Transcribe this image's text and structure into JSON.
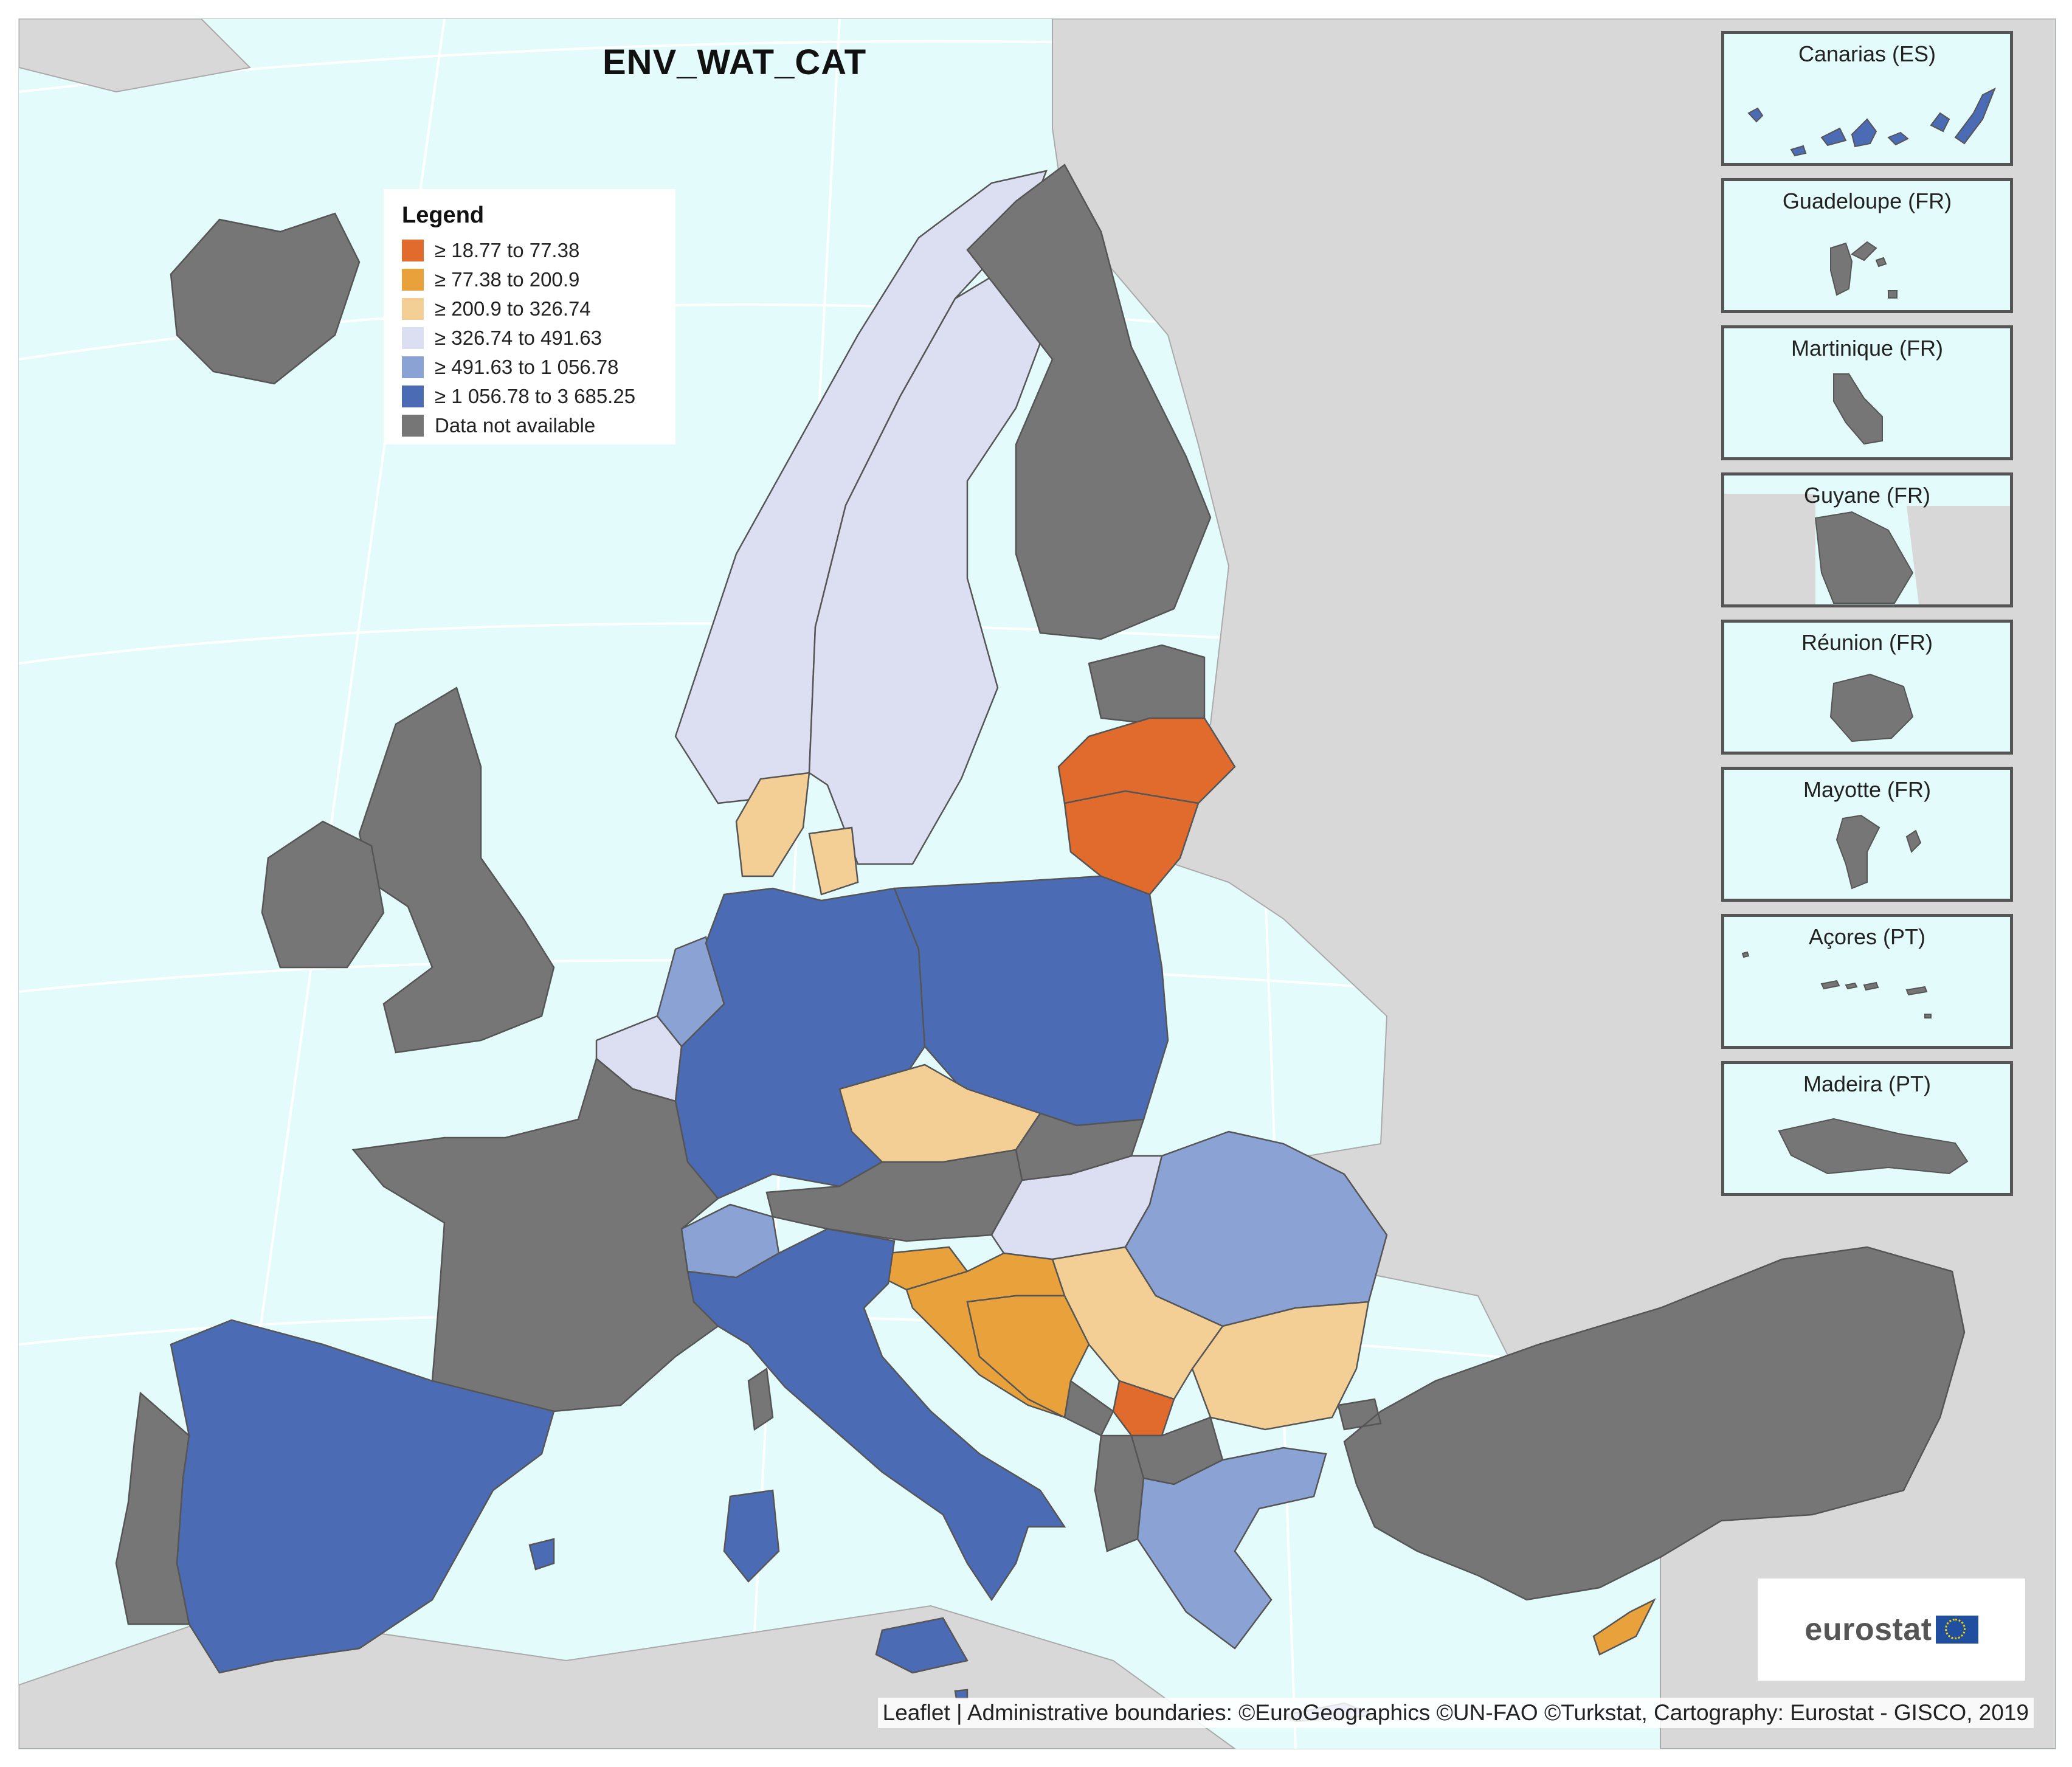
{
  "map": {
    "title": "ENV_WAT_CAT",
    "attribution": "Leaflet | Administrative boundaries: ©EuroGeographics ©UN-FAO ©Turkstat, Cartography: Eurostat - GISCO, 2019",
    "logo_text": "eurostat",
    "legend": {
      "title": "Legend",
      "classes": [
        {
          "label": "≥ 18.77 to 77.38",
          "color": "#e06b2c"
        },
        {
          "label": "≥ 77.38 to 200.9",
          "color": "#e9a23b"
        },
        {
          "label": "≥ 200.9 to 326.74",
          "color": "#f3cf96"
        },
        {
          "label": "≥ 326.74 to 491.63",
          "color": "#dcdef2"
        },
        {
          "label": "≥ 491.63 to 1 056.78",
          "color": "#8aa2d4"
        },
        {
          "label": "≥ 1 056.78 to 3 685.25",
          "color": "#4c6bb5"
        },
        {
          "label": "Data not available",
          "color": "#767676"
        }
      ]
    },
    "countries": [
      {
        "name": "Iceland",
        "class": 6
      },
      {
        "name": "Norway",
        "class": 3
      },
      {
        "name": "Sweden",
        "class": 3
      },
      {
        "name": "Finland",
        "class": 6
      },
      {
        "name": "Estonia",
        "class": 6
      },
      {
        "name": "Latvia",
        "class": 0
      },
      {
        "name": "Lithuania",
        "class": 0
      },
      {
        "name": "Denmark",
        "class": 2
      },
      {
        "name": "United Kingdom",
        "class": 6
      },
      {
        "name": "Ireland",
        "class": 6
      },
      {
        "name": "Netherlands",
        "class": 4
      },
      {
        "name": "Belgium",
        "class": 3
      },
      {
        "name": "Luxembourg",
        "class": 3
      },
      {
        "name": "Germany",
        "class": 5
      },
      {
        "name": "Poland",
        "class": 5
      },
      {
        "name": "Czechia",
        "class": 2
      },
      {
        "name": "Slovakia",
        "class": 6
      },
      {
        "name": "Austria",
        "class": 6
      },
      {
        "name": "Hungary",
        "class": 3
      },
      {
        "name": "Romania",
        "class": 4
      },
      {
        "name": "Bulgaria",
        "class": 2
      },
      {
        "name": "Serbia",
        "class": 2
      },
      {
        "name": "Kosovo",
        "class": 0
      },
      {
        "name": "Montenegro",
        "class": 6
      },
      {
        "name": "Albania",
        "class": 6
      },
      {
        "name": "North Macedonia",
        "class": 6
      },
      {
        "name": "Greece",
        "class": 4
      },
      {
        "name": "Turkey",
        "class": 6
      },
      {
        "name": "Cyprus",
        "class": 1
      },
      {
        "name": "Slovenia",
        "class": 1
      },
      {
        "name": "Croatia",
        "class": 1
      },
      {
        "name": "Bosnia and Herzegovina",
        "class": 1
      },
      {
        "name": "Switzerland",
        "class": 4
      },
      {
        "name": "Italy",
        "class": 5
      },
      {
        "name": "France",
        "class": 6
      },
      {
        "name": "Spain",
        "class": 5
      },
      {
        "name": "Portugal",
        "class": 6
      },
      {
        "name": "Malta",
        "class": 5
      }
    ],
    "insets": [
      {
        "title": "Canarias (ES)",
        "class": 5
      },
      {
        "title": "Guadeloupe (FR)",
        "class": 6
      },
      {
        "title": "Martinique (FR)",
        "class": 6
      },
      {
        "title": "Guyane (FR)",
        "class": 6
      },
      {
        "title": "Réunion (FR)",
        "class": 6
      },
      {
        "title": "Mayotte (FR)",
        "class": 6
      },
      {
        "title": "Açores (PT)",
        "class": 6
      },
      {
        "title": "Madeira (PT)",
        "class": 6
      }
    ]
  }
}
